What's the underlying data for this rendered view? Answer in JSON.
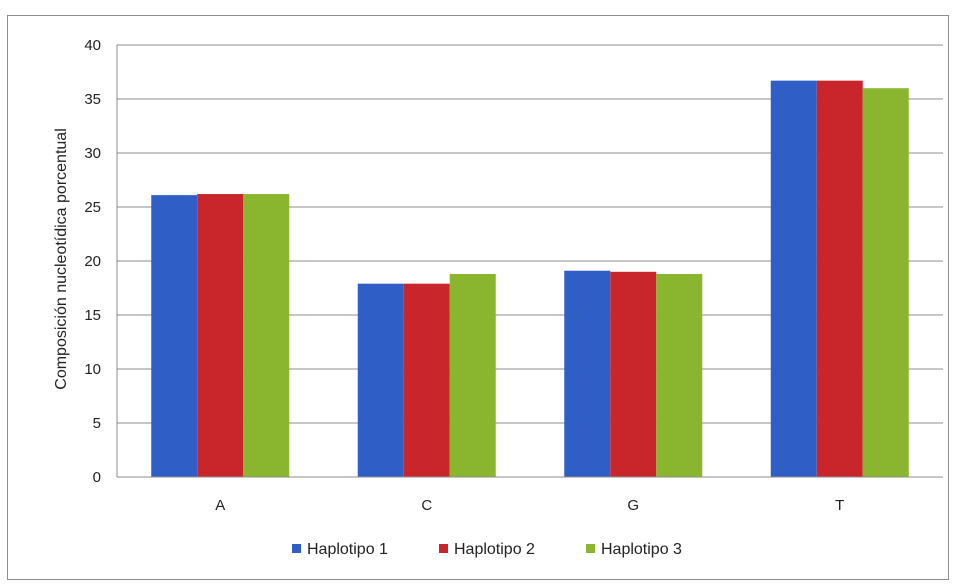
{
  "chart_data": {
    "type": "bar",
    "categories": [
      "A",
      "C",
      "G",
      "T"
    ],
    "series": [
      {
        "name": "Haplotipo 1",
        "values": [
          26.1,
          17.9,
          19.1,
          36.7
        ],
        "color": "#2f5fc6"
      },
      {
        "name": "Haplotipo 2",
        "values": [
          26.2,
          17.9,
          19.0,
          36.7
        ],
        "color": "#c8262b"
      },
      {
        "name": "Haplotipo 3",
        "values": [
          26.2,
          18.8,
          18.8,
          36.0
        ],
        "color": "#8ab62f"
      }
    ],
    "title": "",
    "xlabel": "",
    "ylabel": "Composición nucleotídica porcentual",
    "ylim": [
      0,
      40
    ],
    "yticks": [
      0,
      5,
      10,
      15,
      20,
      25,
      30,
      35,
      40
    ],
    "grid": true,
    "legend_position": "bottom"
  }
}
